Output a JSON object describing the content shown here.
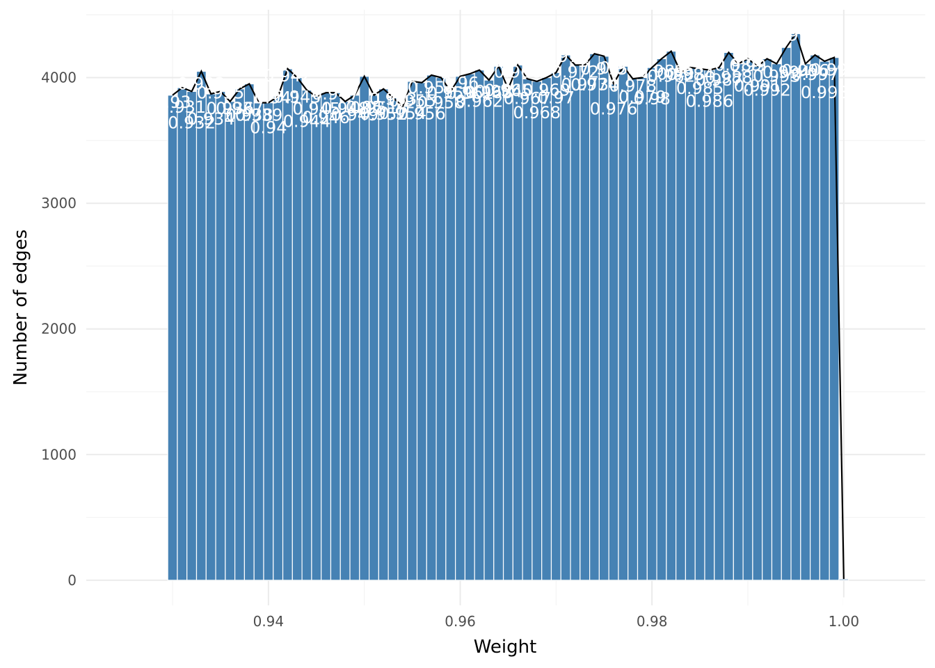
{
  "chart_data": {
    "type": "bar",
    "xlabel": "Weight",
    "ylabel": "Number of edges",
    "xlim": [
      0.921,
      1.0085
    ],
    "ylim": [
      -200,
      4540
    ],
    "x_ticks": [
      0.94,
      0.96,
      0.98,
      1.0
    ],
    "x_tick_labels": [
      "0.94",
      "0.96",
      "0.98",
      "1.00"
    ],
    "y_ticks": [
      0,
      1000,
      2000,
      3000,
      4000
    ],
    "y_tick_labels": [
      "0",
      "1000",
      "2000",
      "3000",
      "4000"
    ],
    "bin_width": 0.001,
    "bins": [
      {
        "x": 0.93,
        "count": 3860,
        "label": "0.93"
      },
      {
        "x": 0.931,
        "count": 3920,
        "label": "0.931"
      },
      {
        "x": 0.932,
        "count": 3890,
        "label": "0.932"
      },
      {
        "x": 0.933,
        "count": 4050,
        "label": "0.933"
      },
      {
        "x": 0.934,
        "count": 3870,
        "label": "0.934"
      },
      {
        "x": 0.935,
        "count": 3890,
        "label": "0.935"
      },
      {
        "x": 0.936,
        "count": 3810,
        "label": "0.936"
      },
      {
        "x": 0.937,
        "count": 3910,
        "label": "0.937"
      },
      {
        "x": 0.938,
        "count": 3950,
        "label": "0.938"
      },
      {
        "x": 0.939,
        "count": 3800,
        "label": "0.939"
      },
      {
        "x": 0.94,
        "count": 3800,
        "label": "0.94"
      },
      {
        "x": 0.941,
        "count": 3850,
        "label": "0.941"
      },
      {
        "x": 0.942,
        "count": 4070,
        "label": "0.942"
      },
      {
        "x": 0.943,
        "count": 4000,
        "label": "0.943"
      },
      {
        "x": 0.944,
        "count": 3900,
        "label": "0.944"
      },
      {
        "x": 0.945,
        "count": 3850,
        "label": "0.945"
      },
      {
        "x": 0.946,
        "count": 3880,
        "label": "0.946"
      },
      {
        "x": 0.947,
        "count": 3880,
        "label": "0.947"
      },
      {
        "x": 0.948,
        "count": 3810,
        "label": "0.948"
      },
      {
        "x": 0.949,
        "count": 3860,
        "label": "0.949"
      },
      {
        "x": 0.95,
        "count": 4010,
        "label": "0.95"
      },
      {
        "x": 0.951,
        "count": 3860,
        "label": "0.951"
      },
      {
        "x": 0.952,
        "count": 3910,
        "label": "0.952"
      },
      {
        "x": 0.953,
        "count": 3840,
        "label": "0.953"
      },
      {
        "x": 0.954,
        "count": 3770,
        "label": "0.954"
      },
      {
        "x": 0.955,
        "count": 3970,
        "label": "0.955"
      },
      {
        "x": 0.956,
        "count": 3960,
        "label": "0.956"
      },
      {
        "x": 0.957,
        "count": 4020,
        "label": "0.957"
      },
      {
        "x": 0.958,
        "count": 4000,
        "label": "0.958"
      },
      {
        "x": 0.959,
        "count": 3890,
        "label": "0.959"
      },
      {
        "x": 0.96,
        "count": 4010,
        "label": "0.96"
      },
      {
        "x": 0.961,
        "count": 4030,
        "label": "0.961"
      },
      {
        "x": 0.962,
        "count": 4060,
        "label": "0.962"
      },
      {
        "x": 0.963,
        "count": 3980,
        "label": "0.963"
      },
      {
        "x": 0.964,
        "count": 4090,
        "label": "0.964"
      },
      {
        "x": 0.965,
        "count": 3910,
        "label": "0.965"
      },
      {
        "x": 0.966,
        "count": 4100,
        "label": "0.966"
      },
      {
        "x": 0.967,
        "count": 3990,
        "label": "0.967"
      },
      {
        "x": 0.968,
        "count": 3970,
        "label": "0.968"
      },
      {
        "x": 0.969,
        "count": 4000,
        "label": "0.969"
      },
      {
        "x": 0.97,
        "count": 4040,
        "label": "0.97"
      },
      {
        "x": 0.971,
        "count": 4180,
        "label": "0.971"
      },
      {
        "x": 0.972,
        "count": 4100,
        "label": "0.972"
      },
      {
        "x": 0.973,
        "count": 4100,
        "label": "0.973"
      },
      {
        "x": 0.974,
        "count": 4190,
        "label": "0.974"
      },
      {
        "x": 0.975,
        "count": 4170,
        "label": "0.975"
      },
      {
        "x": 0.976,
        "count": 3950,
        "label": "0.976"
      },
      {
        "x": 0.977,
        "count": 4090,
        "label": "0.977"
      },
      {
        "x": 0.978,
        "count": 3990,
        "label": "0.978"
      },
      {
        "x": 0.979,
        "count": 4000,
        "label": "0.979"
      },
      {
        "x": 0.98,
        "count": 4080,
        "label": "0.98"
      },
      {
        "x": 0.981,
        "count": 4150,
        "label": "0.981"
      },
      {
        "x": 0.982,
        "count": 4210,
        "label": "0.982"
      },
      {
        "x": 0.983,
        "count": 4040,
        "label": "0.983"
      },
      {
        "x": 0.984,
        "count": 4080,
        "label": "0.984"
      },
      {
        "x": 0.985,
        "count": 4070,
        "label": "0.985"
      },
      {
        "x": 0.986,
        "count": 4060,
        "label": "0.986"
      },
      {
        "x": 0.987,
        "count": 4080,
        "label": "0.987"
      },
      {
        "x": 0.988,
        "count": 4200,
        "label": "0.988"
      },
      {
        "x": 0.989,
        "count": 4110,
        "label": "0.989"
      },
      {
        "x": 0.99,
        "count": 4150,
        "label": "0.99"
      },
      {
        "x": 0.991,
        "count": 4090,
        "label": "0.991"
      },
      {
        "x": 0.992,
        "count": 4150,
        "label": "0.992"
      },
      {
        "x": 0.993,
        "count": 4110,
        "label": "0.993"
      },
      {
        "x": 0.994,
        "count": 4240,
        "label": "0.994"
      },
      {
        "x": 0.995,
        "count": 4350,
        "label": "0.995"
      },
      {
        "x": 0.996,
        "count": 4110,
        "label": "0.996"
      },
      {
        "x": 0.997,
        "count": 4180,
        "label": "0.997"
      },
      {
        "x": 0.998,
        "count": 4130,
        "label": "0.998"
      },
      {
        "x": 0.999,
        "count": 4160,
        "label": "0.999"
      },
      {
        "x": 1.0,
        "count": 10,
        "label": "1"
      }
    ],
    "colors": {
      "bar_fill": "#4682b4",
      "bar_outline": "#ffffff",
      "line": "#000000",
      "label": "#ffffff",
      "grid": "#ebebeb"
    },
    "grid": true,
    "legend": "none"
  }
}
